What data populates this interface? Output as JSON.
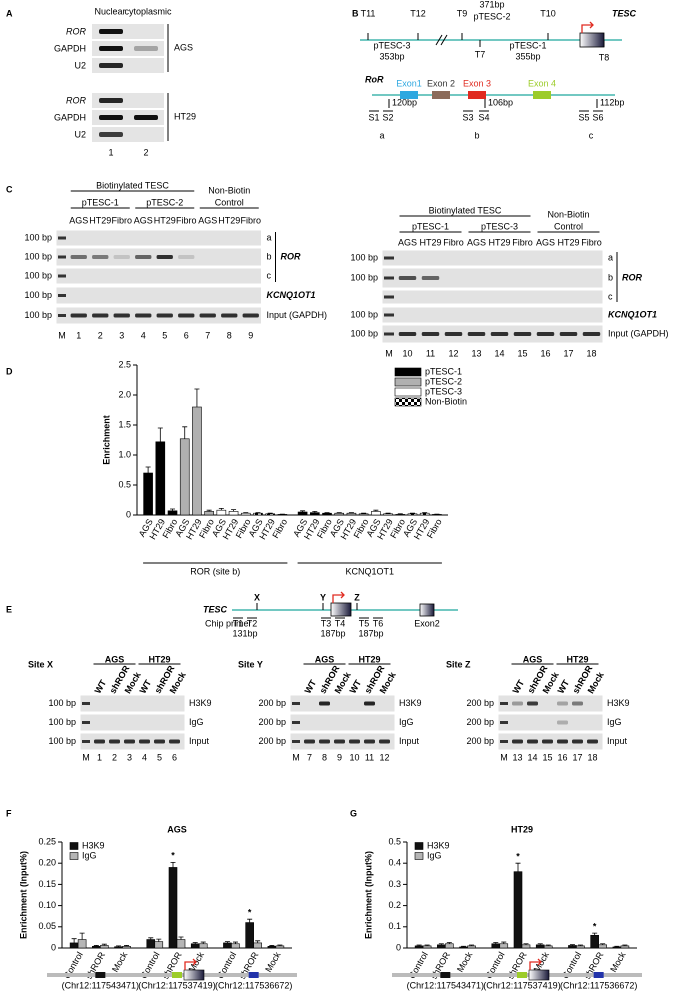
{
  "panel_labels": [
    "A",
    "B",
    "C",
    "D",
    "E",
    "F",
    "G"
  ],
  "panel_a": {
    "columns": [
      "Nuclear",
      "cytoplasmic"
    ],
    "rows": [
      "ROR",
      "GAPDH",
      "U2",
      "ROR",
      "GAPDH",
      "U2"
    ],
    "cell_lines": [
      "AGS",
      "HT29"
    ],
    "lanes": [
      "1",
      "2"
    ]
  },
  "panel_b": {
    "tesc": {
      "primers": [
        "T11",
        "T12",
        "T9",
        "T10",
        "T7",
        "T8"
      ],
      "fragments": [
        {
          "name": "pTESC-2",
          "size": "371bp"
        },
        {
          "name": "pTESC-3",
          "size": "353bp"
        },
        {
          "name": "pTESC-1",
          "size": "355bp"
        }
      ],
      "gene": "TESC"
    },
    "ror": {
      "gene": "RoR",
      "exons": [
        "Exon1",
        "Exon 2",
        "Exon 3",
        "Exon 4"
      ],
      "amplicons": [
        "120bp",
        "106bp",
        "112bp"
      ],
      "primers": [
        "S1",
        "S2",
        "S3",
        "S4",
        "S5",
        "S6"
      ],
      "sites": [
        "a",
        "b",
        "c"
      ]
    }
  },
  "panel_c": {
    "gels": [
      {
        "header": "Biotinylated TESC",
        "groups": [
          "pTESC-1",
          "pTESC-2"
        ],
        "control": [
          "Non-Biotin",
          "Control"
        ],
        "columns": [
          "AGS",
          "HT29",
          "Fibro",
          "AGS",
          "HT29",
          "Fibro",
          "AGS",
          "HT29",
          "Fibro"
        ],
        "markers": [
          "100 bp",
          "100 bp",
          "100 bp",
          "100 bp",
          "100 bp"
        ],
        "row_labels": {
          "sites": [
            "a",
            "b",
            "c"
          ],
          "gene": "ROR",
          "control_gene": "KCNQ1OT1",
          "input": "Input (GAPDH)"
        },
        "lanes": [
          "M",
          "1",
          "2",
          "3",
          "4",
          "5",
          "6",
          "7",
          "8",
          "9"
        ]
      },
      {
        "header": "Biotinylated TESC",
        "groups": [
          "pTESC-1",
          "pTESC-3"
        ],
        "control": [
          "Non-Biotin",
          "Control"
        ],
        "columns": [
          "AGS",
          "HT29",
          "Fibro",
          "AGS",
          "HT29",
          "Fibro",
          "AGS",
          "HT29",
          "Fibro"
        ],
        "markers": [
          "100 bp",
          "100 bp",
          "100 bp",
          "100 bp"
        ],
        "row_labels": {
          "sites": [
            "a",
            "b",
            "c"
          ],
          "gene": "ROR",
          "control_gene": "KCNQ1OT1",
          "input": "Input (GAPDH)"
        },
        "lanes": [
          "M",
          "10",
          "11",
          "12",
          "13",
          "14",
          "15",
          "16",
          "17",
          "18"
        ]
      }
    ]
  },
  "panel_e": {
    "gene": "TESC",
    "sites": [
      "X",
      "Y",
      "Z"
    ],
    "chip_primer": "Chip primer",
    "primers": [
      "T1",
      "T2",
      "T3",
      "T4",
      "T5",
      "T6"
    ],
    "amplicons": [
      "131bp",
      "187bp",
      "187bp"
    ],
    "exon": "Exon2",
    "gels": [
      {
        "site": "Site X",
        "cell_lines": [
          "AGS",
          "HT29"
        ],
        "columns": [
          "WT",
          "shROR",
          "Mock",
          "WT",
          "shROR",
          "Mock"
        ],
        "markers": [
          "100 bp",
          "100 bp",
          "100 bp"
        ],
        "rows": [
          "H3K9",
          "IgG",
          "Input"
        ],
        "lanes": [
          "M",
          "1",
          "2",
          "3",
          "4",
          "5",
          "6"
        ]
      },
      {
        "site": "Site Y",
        "cell_lines": [
          "AGS",
          "HT29"
        ],
        "columns": [
          "WT",
          "shROR",
          "Mock",
          "WT",
          "shROR",
          "Mock"
        ],
        "markers": [
          "200 bp",
          "200 bp",
          "200 bp"
        ],
        "rows": [
          "H3K9",
          "IgG",
          "Input"
        ],
        "lanes": [
          "M",
          "7",
          "8",
          "9",
          "10",
          "11",
          "12"
        ]
      },
      {
        "site": "Site Z",
        "cell_lines": [
          "AGS",
          "HT29"
        ],
        "columns": [
          "WT",
          "shROR",
          "Mock",
          "WT",
          "shROR",
          "Mock"
        ],
        "markers": [
          "200 bp",
          "200 bp",
          "200 bp"
        ],
        "rows": [
          "H3K9",
          "IgG",
          "Input"
        ],
        "lanes": [
          "M",
          "13",
          "14",
          "15",
          "16",
          "17",
          "18"
        ]
      }
    ]
  },
  "chart_data": [
    {
      "type": "bar",
      "y_label": "Enrichment",
      "categories": [
        "AGS",
        "HT29",
        "Fibro",
        "AGS",
        "HT29",
        "Fibro",
        "AGS",
        "HT29",
        "Fibro",
        "AGS",
        "HT29",
        "Fibro",
        "AGS",
        "HT29",
        "Fibro",
        "AGS",
        "HT29",
        "Fibro",
        "AGS",
        "HT29",
        "Fibro",
        "AGS",
        "HT29",
        "Fibro"
      ],
      "group_labels": [
        "ROR (site b)",
        "KCNQ1OT1"
      ],
      "ylim": [
        0,
        2.5
      ],
      "yticks": [
        0,
        0.5,
        {
          "value": 1,
          "label": "1.0"
        },
        1.5,
        {
          "value": 2,
          "label": "2.0"
        },
        2.5
      ],
      "series": [
        {
          "name": "pTESC-1",
          "color": "#000000",
          "values": [
            0.7,
            1.22,
            0.07,
            null,
            null,
            null,
            null,
            null,
            null,
            null,
            null,
            null,
            0.05,
            0.04,
            0.03,
            null,
            null,
            null,
            null,
            null,
            null,
            null,
            null,
            null
          ],
          "errors": [
            0.1,
            0.23,
            0.03,
            null,
            null,
            null,
            null,
            null,
            null,
            null,
            null,
            null,
            0.02,
            0.02,
            0.01,
            null,
            null,
            null,
            null,
            null,
            null,
            null,
            null,
            null
          ]
        },
        {
          "name": "pTESC-2",
          "color": "#b0b0b0",
          "values": [
            null,
            null,
            null,
            1.27,
            1.8,
            0.06,
            null,
            null,
            null,
            null,
            null,
            null,
            null,
            null,
            null,
            0.03,
            0.03,
            0.02,
            null,
            null,
            null,
            null,
            null,
            null
          ],
          "errors": [
            null,
            null,
            null,
            0.2,
            0.3,
            0.02,
            null,
            null,
            null,
            null,
            null,
            null,
            null,
            null,
            null,
            0.01,
            0.01,
            0.01,
            null,
            null,
            null,
            null,
            null,
            null
          ]
        },
        {
          "name": "pTESC-3",
          "color": "#ffffff",
          "values": [
            null,
            null,
            null,
            null,
            null,
            null,
            0.08,
            0.06,
            0.03,
            null,
            null,
            null,
            null,
            null,
            null,
            null,
            null,
            null,
            0.06,
            0.02,
            0.01,
            null,
            null,
            null
          ],
          "errors": [
            null,
            null,
            null,
            null,
            null,
            null,
            0.03,
            0.03,
            0.01,
            null,
            null,
            null,
            null,
            null,
            null,
            null,
            null,
            null,
            0.02,
            0.01,
            0.01,
            null,
            null,
            null
          ]
        },
        {
          "name": "Non-Biotin",
          "color": "#ffffff",
          "pattern": "checker",
          "values": [
            null,
            null,
            null,
            null,
            null,
            null,
            null,
            null,
            null,
            0.03,
            0.02,
            0.01,
            null,
            null,
            null,
            null,
            null,
            null,
            null,
            null,
            null,
            0.02,
            0.03,
            0.01
          ],
          "errors": [
            null,
            null,
            null,
            null,
            null,
            null,
            null,
            null,
            null,
            0.01,
            0.01,
            0.005,
            null,
            null,
            null,
            null,
            null,
            null,
            null,
            null,
            null,
            0.01,
            0.01,
            0.005
          ]
        }
      ]
    },
    {
      "type": "bar",
      "title": "AGS",
      "y_label": "Enrichment (Input%)",
      "categories": [
        "Control",
        "shROR",
        "Mock",
        "Control",
        "shROR",
        "Mock",
        "Control",
        "shROR",
        "Mock"
      ],
      "coordinates": [
        "(Chr12:117543471)",
        "(Chr12:117537419)",
        "(Chr12:117536672)"
      ],
      "ylim": [
        0,
        0.25
      ],
      "yticks": [
        0,
        0.05,
        {
          "value": 0.1,
          "label": "0.10"
        },
        0.15,
        {
          "value": 0.2,
          "label": "0.20"
        },
        0.25
      ],
      "series": [
        {
          "name": "H3K9",
          "color": "#111111",
          "values": [
            0.012,
            0.004,
            0.003,
            0.02,
            0.19,
            0.01,
            0.012,
            0.06,
            0.004
          ],
          "errors": [
            0.01,
            0.002,
            0.002,
            0.004,
            0.012,
            0.003,
            0.003,
            0.008,
            0.002
          ],
          "annotations": [
            null,
            null,
            null,
            null,
            "*",
            null,
            null,
            "*",
            null
          ]
        },
        {
          "name": "IgG",
          "color": "#b5b5b5",
          "values": [
            0.02,
            0.006,
            0.004,
            0.015,
            0.02,
            0.01,
            0.01,
            0.012,
            0.005
          ],
          "errors": [
            0.015,
            0.003,
            0.002,
            0.006,
            0.006,
            0.004,
            0.004,
            0.005,
            0.002
          ]
        }
      ]
    },
    {
      "type": "bar",
      "title": "HT29",
      "y_label": "Enrichment (Input%)",
      "categories": [
        "Control",
        "shROR",
        "Mock",
        "Control",
        "shROR",
        "Mock",
        "Control",
        "shROR",
        "Mock"
      ],
      "coordinates": [
        "(Chr12:117543471)",
        "(Chr12:117537419)",
        "(Chr12:117536672)"
      ],
      "ylim": [
        0,
        0.5
      ],
      "yticks": [
        0,
        0.1,
        0.2,
        0.3,
        0.4,
        0.5
      ],
      "series": [
        {
          "name": "H3K9",
          "color": "#111111",
          "values": [
            0.01,
            0.015,
            0.005,
            0.02,
            0.36,
            0.015,
            0.012,
            0.06,
            0.005
          ],
          "errors": [
            0.004,
            0.005,
            0.003,
            0.006,
            0.04,
            0.005,
            0.004,
            0.01,
            0.003
          ],
          "annotations": [
            null,
            null,
            null,
            null,
            "*",
            null,
            null,
            "*",
            null
          ]
        },
        {
          "name": "IgG",
          "color": "#b5b5b5",
          "values": [
            0.01,
            0.02,
            0.01,
            0.02,
            0.015,
            0.01,
            0.01,
            0.015,
            0.01
          ],
          "errors": [
            0.004,
            0.006,
            0.004,
            0.008,
            0.005,
            0.004,
            0.004,
            0.005,
            0.004
          ]
        }
      ]
    }
  ]
}
